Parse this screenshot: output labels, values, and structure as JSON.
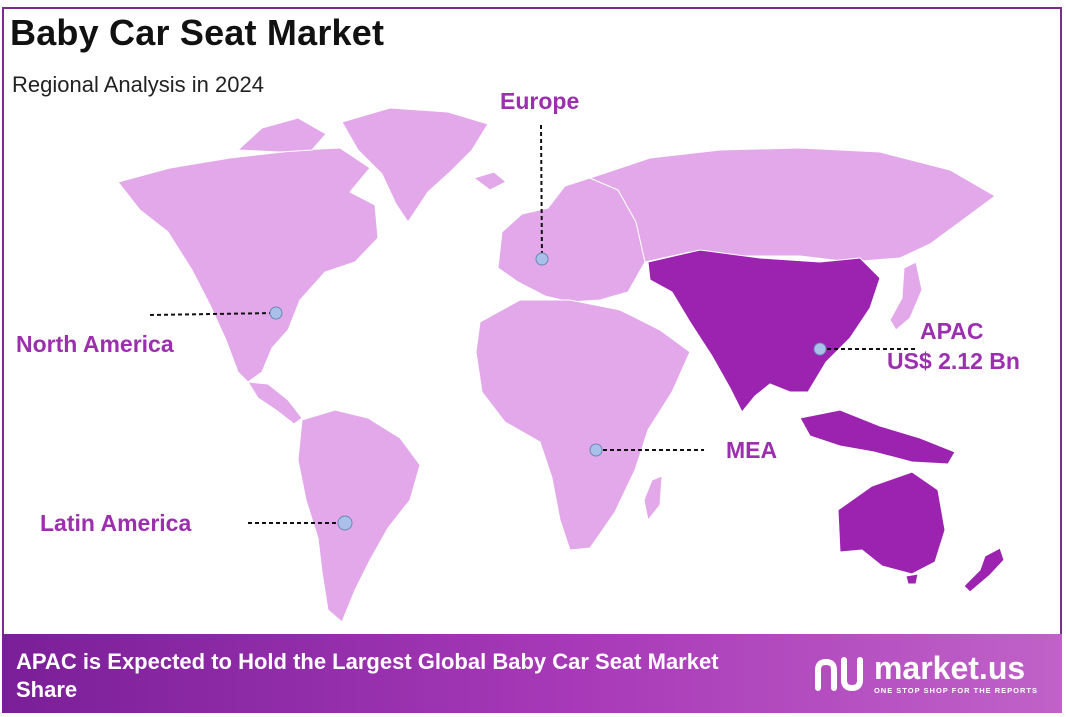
{
  "header": {
    "title": "Baby Car Seat Market",
    "subtitle": "Regional Analysis in 2024"
  },
  "regions": {
    "north_america": {
      "label": "North America"
    },
    "europe": {
      "label": "Europe"
    },
    "apac": {
      "label": "APAC",
      "value": "US$ 2.12 Bn",
      "highlighted": true
    },
    "mea": {
      "label": "MEA"
    },
    "latin_america": {
      "label": "Latin America"
    }
  },
  "footer": {
    "headline": "APAC is Expected to Hold the Largest Global Baby Car Seat Market Share",
    "brand_name": "market.us",
    "brand_tagline": "ONE STOP SHOP FOR THE REPORTS"
  },
  "colors": {
    "land": "#e2a8ea",
    "highlight": "#9b23b0",
    "label": "#9b2fae",
    "marker": "#a9c1e8",
    "frame": "#7b2d8e",
    "banner_start": "#7a1f98",
    "banner_end": "#c062c8"
  }
}
